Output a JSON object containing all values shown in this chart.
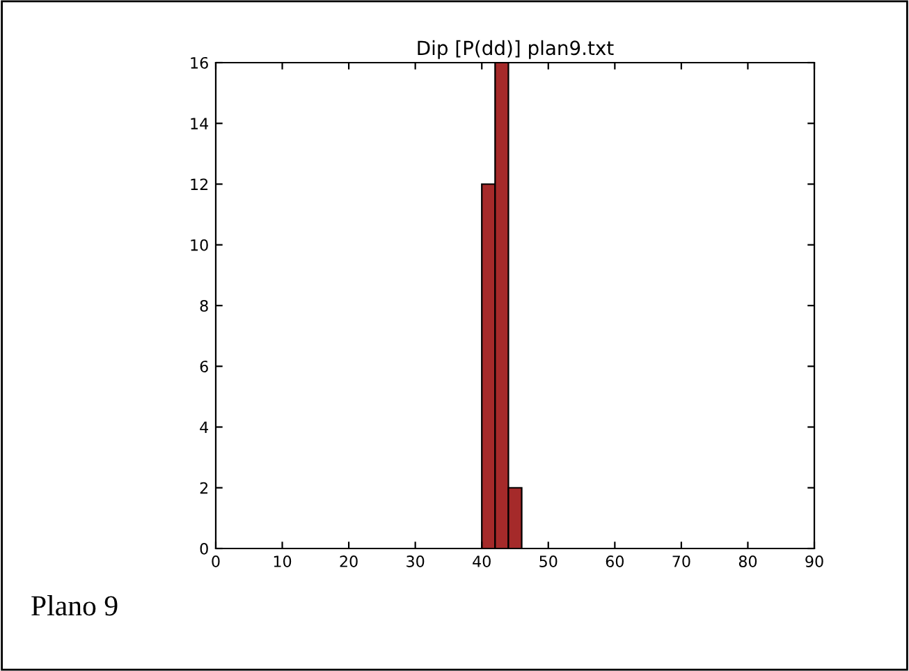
{
  "chart_data": {
    "type": "histogram",
    "title": "Dip [P(dd)] plan9.txt",
    "bins": [
      40,
      42,
      44,
      46
    ],
    "values": [
      12,
      16,
      2
    ],
    "color": "#a52a2a",
    "xlim": [
      0,
      90
    ],
    "xticks": [
      0,
      10,
      20,
      30,
      40,
      50,
      60,
      70,
      80,
      90
    ],
    "ylim": [
      0,
      16
    ],
    "yticks": [
      0,
      2,
      4,
      6,
      8,
      10,
      12,
      14,
      16
    ],
    "grid": false,
    "annotations": [
      "Plano 9"
    ]
  }
}
